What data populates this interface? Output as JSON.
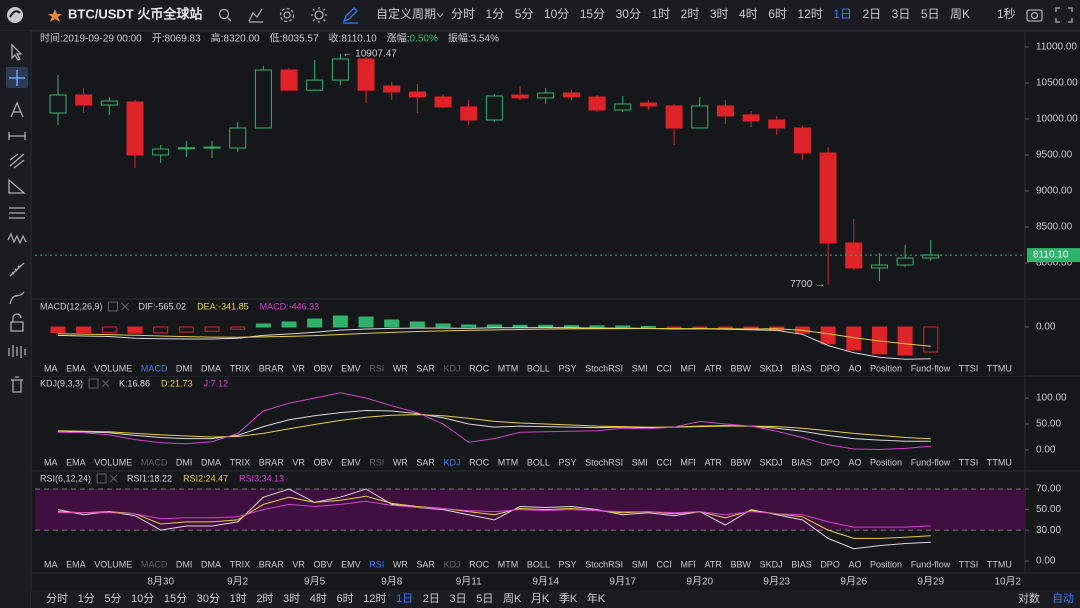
{
  "header": {
    "symbol": "BTC/USDT 火币全球站",
    "custom_period": "自定义周期",
    "periods": [
      "分时",
      "1分",
      "5分",
      "10分",
      "15分",
      "30分",
      "1时",
      "2时",
      "3时",
      "4时",
      "6时",
      "12时",
      "1日",
      "2日",
      "3日",
      "5日",
      "周K"
    ],
    "active_period": "1日",
    "refresh": "1秒"
  },
  "info_bar": {
    "items": [
      "时间:2019-09-29 00:00",
      "开:8069.83",
      "高:8320.00",
      "低:8035.57",
      "收:8110.10"
    ],
    "change_label": "涨幅:",
    "change_value": "0.50%",
    "amplitude": "振幅:3.54%"
  },
  "chart_data": [
    {
      "type": "candlestick",
      "open": [
        10083,
        10333,
        10194,
        10236,
        9500,
        9590,
        9600,
        9597,
        9875,
        10680,
        10400,
        10540,
        10833,
        10458,
        10375,
        10306,
        10167,
        9986,
        10333,
        10292,
        10361,
        10306,
        10125,
        10222,
        10181,
        9875,
        10181,
        10056,
        9986,
        9875,
        9528,
        8278,
        7931,
        7972,
        8069.83
      ],
      "high": [
        10611,
        10431,
        10306,
        10264,
        9639,
        9694,
        9694,
        9958,
        10736,
        10708,
        10820,
        10907.47,
        10861,
        10514,
        10486,
        10347,
        10264,
        10347,
        10458,
        10431,
        10403,
        10333,
        10319,
        10264,
        10208,
        10306,
        10264,
        10111,
        10042,
        9903,
        9611,
        8611,
        8139,
        8250,
        8320
      ],
      "low": [
        9917,
        10083,
        10056,
        9319,
        9389,
        9472,
        9458,
        9542,
        9875,
        10400,
        10389,
        10472,
        10222,
        10264,
        10083,
        10153,
        9917,
        9958,
        10264,
        10208,
        10264,
        10097,
        10097,
        10125,
        9639,
        9875,
        9931,
        9889,
        9778,
        9431,
        7700,
        7903,
        7750,
        7944,
        8035.57
      ],
      "close": [
        10333,
        10194,
        10250,
        9500,
        9583,
        9600,
        9610,
        9875,
        10680,
        10400,
        10540,
        10833,
        10400,
        10375,
        10306,
        10167,
        9986,
        10319,
        10292,
        10361,
        10306,
        10125,
        10208,
        10181,
        9875,
        10181,
        10042,
        9972,
        9875,
        9528,
        8278,
        7931,
        7972,
        8069,
        8110.1
      ],
      "up_color": "#2fb36b",
      "down_color": "#de2329",
      "ylim": [
        7514,
        11194
      ],
      "yticks": [
        {
          "value": 8000,
          "label": "8000.00"
        },
        {
          "value": 8500,
          "label": "8500.00"
        },
        {
          "value": 9000,
          "label": "9000.00"
        },
        {
          "value": 9500,
          "label": "9500.00"
        },
        {
          "value": 10000,
          "label": "10000.00"
        },
        {
          "value": 10500,
          "label": "10500.00"
        },
        {
          "value": 11000,
          "label": "11000.00"
        }
      ],
      "last_price": {
        "value": 8110.1,
        "label": "8110.10"
      },
      "max_label": "← 10907.47",
      "min_label": "7700 →",
      "x_labels": [
        "8月30",
        "9月2",
        "9月5",
        "9月8",
        "9月11",
        "9月14",
        "9月17",
        "9月20",
        "9月23",
        "9月26",
        "9月29",
        "10月2"
      ]
    },
    {
      "type": "macd",
      "title": "MACD(12,26,9)",
      "tab": "MACD",
      "ylim": [
        -589,
        482
      ],
      "yticks": [
        {
          "value": 0,
          "label": "0.00"
        }
      ],
      "series": [
        {
          "name": "DIF:-565.02",
          "color": "#d9d9d9",
          "values": [
            -150,
            -160,
            -170,
            -200,
            -210,
            -215,
            -215,
            -200,
            -150,
            -125,
            -95,
            -55,
            -35,
            -25,
            -20,
            -20,
            -25,
            -15,
            -15,
            -10,
            -15,
            -20,
            -20,
            -25,
            -35,
            -30,
            -40,
            -50,
            -60,
            -130,
            -330,
            -460,
            -540,
            -575,
            -565.02
          ]
        },
        {
          "name": "DEA:-341.85",
          "color": "#e6cf3c",
          "values": [
            -120,
            -126,
            -135,
            -148,
            -160,
            -171,
            -180,
            -184,
            -177,
            -167,
            -153,
            -133,
            -114,
            -96,
            -81,
            -69,
            -60,
            -51,
            -44,
            -37,
            -33,
            -30,
            -28,
            -27,
            -29,
            -29,
            -31,
            -35,
            -30,
            -60,
            -120,
            -190,
            -250,
            -300,
            -341.85
          ]
        }
      ],
      "histogram": {
        "name": "MACD:-446.33",
        "color": "#d23fd0",
        "values": [
          -100,
          -100,
          -95,
          -110,
          -105,
          -90,
          -75,
          -40,
          54,
          90,
          143,
          196,
          178,
          125,
          90,
          54,
          36,
          36,
          30,
          30,
          25,
          20,
          18,
          10,
          -10,
          -2,
          -18,
          -30,
          -60,
          -110,
          -300,
          -410,
          -480,
          -500,
          -446.33
        ]
      },
      "up_color": "#2fb36b",
      "down_color": "#de2329"
    },
    {
      "type": "kdj",
      "title": "KDJ(9,3,3)",
      "tab": "KDJ",
      "ylim": [
        -9.6,
        136.5
      ],
      "yticks": [
        {
          "value": 0,
          "label": "0.00"
        },
        {
          "value": 50,
          "label": "50.00"
        },
        {
          "value": 100,
          "label": "100.00"
        }
      ],
      "series": [
        {
          "name": "K:16.86",
          "color": "#d9d9d9",
          "values": [
            36,
            35,
            33,
            28,
            24,
            22,
            22,
            28,
            45,
            58,
            66,
            72,
            76,
            75,
            70,
            62,
            50,
            44,
            46,
            45,
            44,
            43,
            44,
            43,
            44,
            46,
            47,
            46,
            42,
            36,
            28,
            22,
            19,
            17,
            16.86
          ]
        },
        {
          "name": "D:21.73",
          "color": "#e6cf3c",
          "values": [
            37,
            36,
            35,
            32,
            29,
            27,
            25,
            26,
            32,
            41,
            49,
            57,
            63,
            67,
            68,
            66,
            61,
            55,
            52,
            50,
            48,
            46,
            45,
            44,
            44,
            45,
            46,
            46,
            45,
            42,
            37,
            32,
            28,
            24,
            21.73
          ]
        },
        {
          "name": "J:7.12",
          "color": "#d23fd0",
          "values": [
            34,
            33,
            29,
            20,
            14,
            12,
            16,
            32,
            75,
            90,
            100,
            110,
            100,
            85,
            72,
            50,
            15,
            22,
            34,
            35,
            36,
            37,
            42,
            41,
            44,
            55,
            50,
            46,
            36,
            24,
            10,
            2,
            1,
            3,
            7.12
          ]
        }
      ]
    },
    {
      "type": "rsi",
      "title": "RSI(6,12,24)",
      "tab": "RSI",
      "ylim": [
        -8.75,
        83.6
      ],
      "yticks": [
        {
          "value": 0,
          "label": "0.00"
        },
        {
          "value": 30,
          "label": "30.00"
        },
        {
          "value": 50,
          "label": "50.00"
        },
        {
          "value": 70,
          "label": "70.00"
        }
      ],
      "overbought": 70,
      "oversold": 30,
      "band_color": "#3f0f3f",
      "series": [
        {
          "name": "RSI1:18.22",
          "color": "#d9d9d9",
          "values": [
            50,
            45,
            48,
            44,
            30,
            34,
            34,
            38,
            62,
            70,
            57,
            62,
            70,
            55,
            52,
            50,
            45,
            40,
            53,
            52,
            53,
            50,
            45,
            47,
            44,
            48,
            35,
            50,
            45,
            40,
            22,
            12,
            15,
            17,
            18.22
          ]
        },
        {
          "name": "RSI2:24.47",
          "color": "#e6cf3c",
          "values": [
            48,
            47,
            48,
            46,
            36,
            38,
            38,
            40,
            55,
            62,
            57,
            59,
            63,
            56,
            53,
            51,
            48,
            45,
            51,
            50,
            51,
            49,
            47,
            48,
            46,
            48,
            42,
            49,
            46,
            43,
            30,
            22,
            22,
            23,
            24.47
          ]
        },
        {
          "name": "RSI3:34.13",
          "color": "#d23fd0",
          "values": [
            47,
            47,
            47,
            46,
            41,
            42,
            42,
            43,
            50,
            55,
            53,
            55,
            58,
            54,
            52,
            51,
            49,
            48,
            50,
            49,
            50,
            49,
            48,
            48,
            47,
            48,
            45,
            48,
            46,
            45,
            38,
            33,
            33,
            33,
            34.13
          ]
        }
      ]
    }
  ],
  "indicator_tabs": [
    "MA",
    "EMA",
    "VOLUME",
    "MACD",
    "DMI",
    "DMA",
    "TRIX",
    "BRAR",
    "VR",
    "OBV",
    "EMV",
    "RSI",
    "WR",
    "SAR",
    "KDJ",
    "ROC",
    "MTM",
    "BOLL",
    "PSY",
    "StochRSI",
    "SMI",
    "CCI",
    "MFI",
    "ATR",
    "BBW",
    "SKDJ",
    "BIAS",
    "DPO",
    "AO",
    "Position",
    "Fund-flow",
    "TTSI",
    "TTMU"
  ],
  "footer": {
    "periods": [
      "分时",
      "1分",
      "5分",
      "10分",
      "15分",
      "30分",
      "1时",
      "2时",
      "3时",
      "4时",
      "6时",
      "12时",
      "1日",
      "2日",
      "3日",
      "5日",
      "周K",
      "月K",
      "季K",
      "年K"
    ],
    "active_period": "1日",
    "log_scale": "对数",
    "auto": "自动"
  }
}
